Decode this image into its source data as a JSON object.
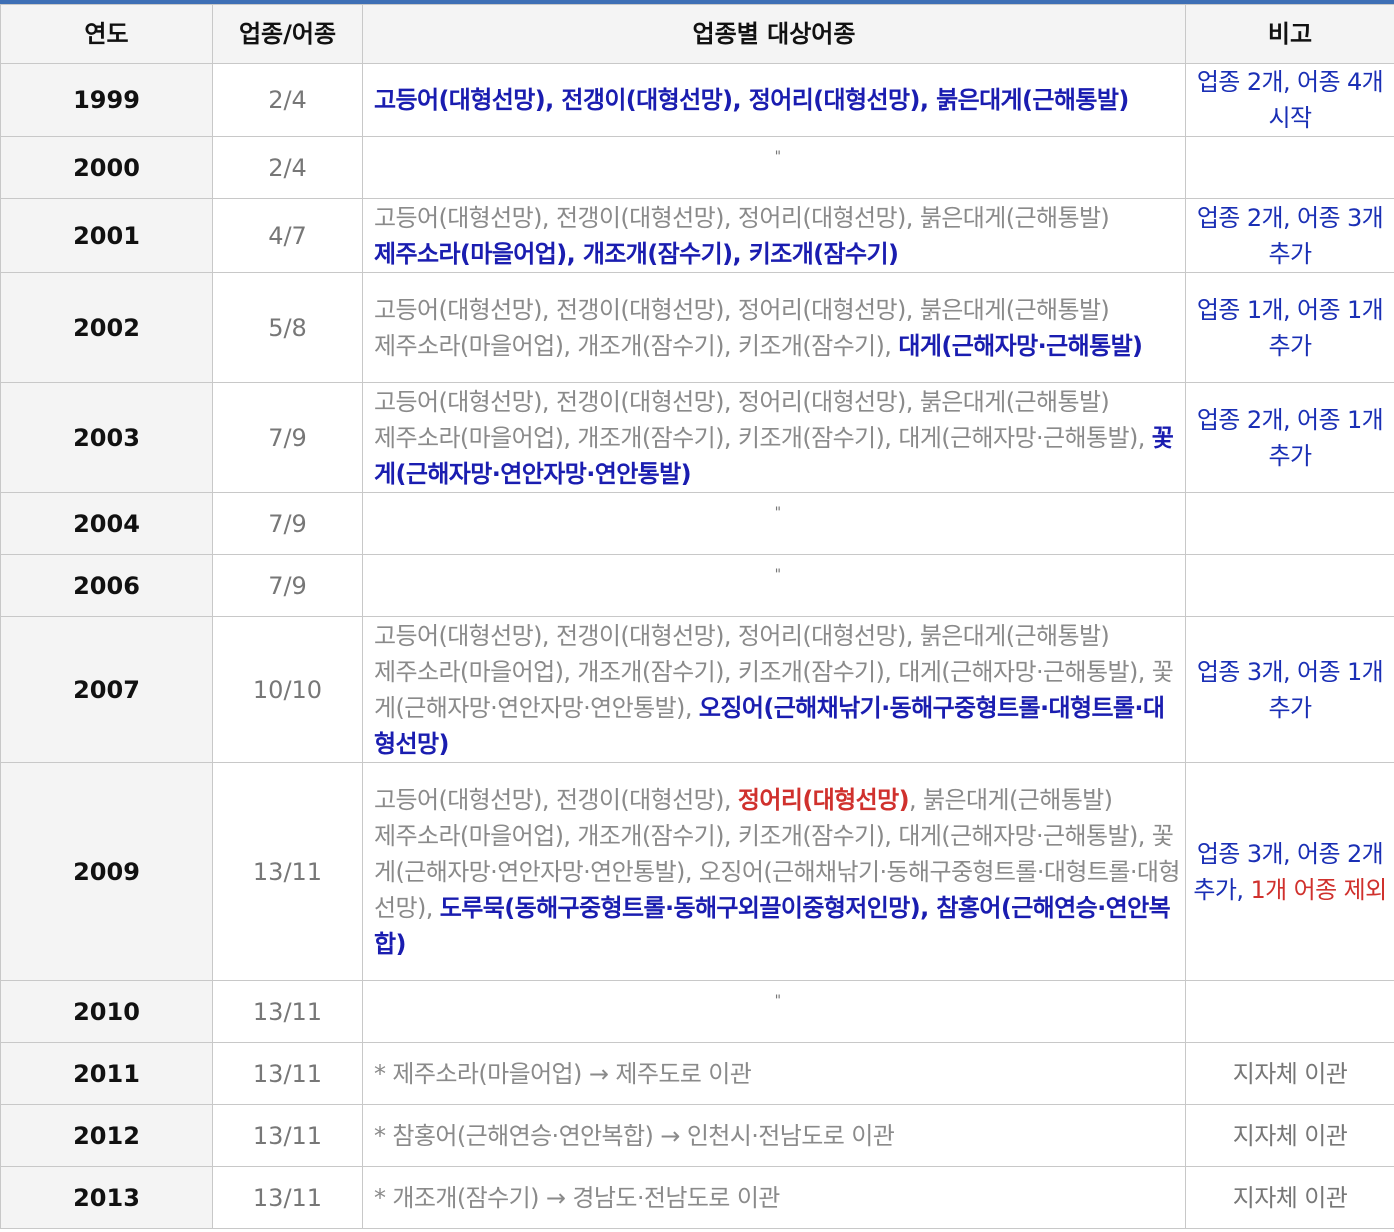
{
  "headers": [
    "연도",
    "업종/어종",
    "업종별 대상어종",
    "비고"
  ],
  "ditto": "\"",
  "colors": {
    "header_line": "#3e6fb5",
    "new_species": "#1a1db0",
    "removed": "#d0312d",
    "old": "#8a8a8a"
  },
  "rows": [
    {
      "year": "1999",
      "count": "2/4",
      "lines": [
        [
          {
            "t": "고등어(대형선망), 전갱이(대형선망), 정어리(대형선망), 붉은대게(근해통발)",
            "s": "new"
          }
        ]
      ],
      "note": [
        {
          "t": "업종 2개, 어종 4개 시작",
          "s": ""
        }
      ]
    },
    {
      "year": "2000",
      "count": "2/4",
      "ditto": true,
      "note": []
    },
    {
      "year": "2001",
      "count": "4/7",
      "lines": [
        [
          {
            "t": "고등어(대형선망), 전갱이(대형선망), 정어리(대형선망), 붉은대게(근해통발)",
            "s": "old"
          }
        ],
        [
          {
            "t": "제주소라(마을어업), 개조개(잠수기), 키조개(잠수기)",
            "s": "new"
          }
        ]
      ],
      "note": [
        {
          "t": "업종 2개, 어종 3개 추가",
          "s": ""
        }
      ]
    },
    {
      "year": "2002",
      "count": "5/8",
      "lines": [
        [
          {
            "t": "고등어(대형선망), 전갱이(대형선망), 정어리(대형선망), 붉은대게(근해통발)",
            "s": "old"
          }
        ],
        [
          {
            "t": "제주소라(마을어업), 개조개(잠수기), 키조개(잠수기), ",
            "s": "old"
          },
          {
            "t": "대게(근해자망·근해통발)",
            "s": "new"
          }
        ]
      ],
      "note": [
        {
          "t": "업종 1개, 어종 1개 추가",
          "s": ""
        }
      ]
    },
    {
      "year": "2003",
      "count": "7/9",
      "lines": [
        [
          {
            "t": "고등어(대형선망), 전갱이(대형선망), 정어리(대형선망), 붉은대게(근해통발)",
            "s": "old"
          }
        ],
        [
          {
            "t": "제주소라(마을어업), 개조개(잠수기), 키조개(잠수기), 대게(근해자망·근해통발), ",
            "s": "old"
          },
          {
            "t": "꽃게(근해자망·연안자망·연안통발)",
            "s": "new"
          }
        ]
      ],
      "note": [
        {
          "t": "업종 2개, 어종 1개 추가",
          "s": ""
        }
      ]
    },
    {
      "year": "2004",
      "count": "7/9",
      "ditto": true,
      "note": []
    },
    {
      "year": "2006",
      "count": "7/9",
      "ditto": true,
      "note": []
    },
    {
      "year": "2007",
      "count": "10/10",
      "lines": [
        [
          {
            "t": "고등어(대형선망), 전갱이(대형선망), 정어리(대형선망), 붉은대게(근해통발)",
            "s": "old"
          }
        ],
        [
          {
            "t": "제주소라(마을어업), 개조개(잠수기), 키조개(잠수기), 대게(근해자망·근해통발), 꽃게(근해자망·연안자망·연안통발), ",
            "s": "old"
          },
          {
            "t": "오징어(근해채낚기·동해구중형트롤·대형트롤·대형선망)",
            "s": "new"
          }
        ]
      ],
      "note": [
        {
          "t": "업종 3개, 어종 1개 추가",
          "s": ""
        }
      ]
    },
    {
      "year": "2009",
      "count": "13/11",
      "lines": [
        [
          {
            "t": "고등어(대형선망), 전갱이(대형선망), ",
            "s": "old"
          },
          {
            "t": "정어리(대형선망)",
            "s": "removed"
          },
          {
            "t": ", 붉은대게(근해통발)",
            "s": "old"
          }
        ],
        [
          {
            "t": "제주소라(마을어업), 개조개(잠수기), 키조개(잠수기), 대게(근해자망·근해통발), 꽃게(근해자망·연안자망·연안통발), 오징어(근해채낚기·동해구중형트롤·대형트롤·대형선망), ",
            "s": "old"
          },
          {
            "t": "도루묵(동해구중형트롤·동해구외끌이중형저인망), 참홍어(근해연승·연안복합)",
            "s": "new"
          }
        ]
      ],
      "note": [
        {
          "t": "업종 3개, 어종 2개 추가, ",
          "s": ""
        },
        {
          "t": "1개 어종 제외",
          "s": "red"
        }
      ]
    },
    {
      "year": "2010",
      "count": "13/11",
      "ditto": true,
      "note": []
    },
    {
      "year": "2011",
      "count": "13/11",
      "lines": [
        [
          {
            "t": "* 제주소라(마을어업) → 제주도로 이관",
            "s": "old"
          }
        ]
      ],
      "note": [
        {
          "t": "지자체 이관",
          "s": ""
        }
      ],
      "note_style": "gray"
    },
    {
      "year": "2012",
      "count": "13/11",
      "lines": [
        [
          {
            "t": "* 참홍어(근해연승·연안복합) → 인천시·전남도로 이관",
            "s": "old"
          }
        ]
      ],
      "note": [
        {
          "t": "지자체 이관",
          "s": ""
        }
      ],
      "note_style": "gray"
    },
    {
      "year": "2013",
      "count": "13/11",
      "lines": [
        [
          {
            "t": "* 개조개(잠수기) → 경남도·전남도로 이관",
            "s": "old"
          }
        ]
      ],
      "note": [
        {
          "t": "지자체 이관",
          "s": ""
        }
      ],
      "note_style": "gray"
    }
  ]
}
